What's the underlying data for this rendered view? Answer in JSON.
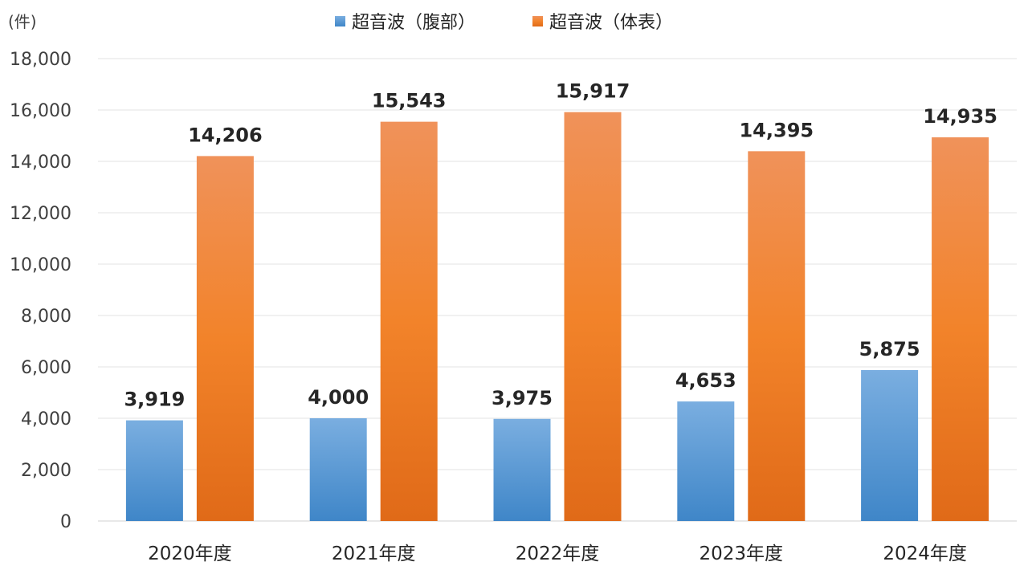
{
  "chart_data": {
    "type": "bar",
    "title": "",
    "xlabel": "",
    "ylabel": "",
    "unit_label": "(件)",
    "categories": [
      "2020年度",
      "2021年度",
      "2022年度",
      "2023年度",
      "2024年度"
    ],
    "series": [
      {
        "name": "超音波（腹部）",
        "values": [
          3919,
          4000,
          3975,
          4653,
          5875
        ],
        "data_labels": [
          "3,919",
          "4,000",
          "3,975",
          "4,653",
          "5,875"
        ],
        "color": "#5B9BD5"
      },
      {
        "name": "超音波（体表）",
        "values": [
          14206,
          15543,
          15917,
          14395,
          14935
        ],
        "data_labels": [
          "14,206",
          "15,543",
          "15,917",
          "14,395",
          "14,935"
        ],
        "color": "#ED7D31"
      }
    ],
    "ylim": [
      0,
      18000
    ],
    "yticks": [
      0,
      2000,
      4000,
      6000,
      8000,
      10000,
      12000,
      14000,
      16000,
      18000
    ],
    "ytick_labels": [
      "0",
      "2,000",
      "4,000",
      "6,000",
      "8,000",
      "10,000",
      "12,000",
      "14,000",
      "16,000",
      "18,000"
    ],
    "grid": true,
    "legend_position": "top"
  }
}
